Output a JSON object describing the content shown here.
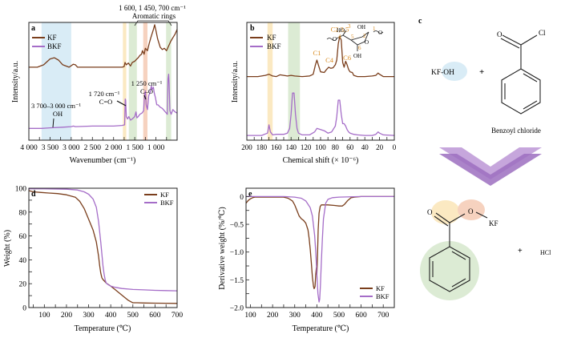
{
  "colors": {
    "kf": "#7a3e1c",
    "bkf": "#a56dc8",
    "band_blue": "#d9ecf6",
    "band_yellow": "#fbe9c2",
    "band_green": "#dcebd4",
    "band_orange": "#f6d2bf",
    "label_orange": "#d98a1f",
    "arrow_light": "#c6a6dc",
    "arrow_dark": "#9c6fc0"
  },
  "chart_data": [
    {
      "id": "a",
      "type": "line",
      "panel_label": "a",
      "xlabel": "Wavenumber (cm⁻¹)",
      "ylabel": "Intensity/a.u.",
      "xlim": [
        4000,
        500
      ],
      "x_reversed": true,
      "ylim": [
        0,
        1
      ],
      "xticks": [
        4000,
        3500,
        3000,
        2500,
        2000,
        1500,
        1000
      ],
      "xtick_labels": [
        "4 000",
        "3 500",
        "3 000",
        "2 500",
        "2 000",
        "1 500",
        "1 000"
      ],
      "legend": [
        "KF",
        "BKF"
      ],
      "legend_position": "top-left",
      "bands": [
        {
          "from": 3700,
          "to": 3000,
          "color": "band_blue"
        },
        {
          "from": 1780,
          "to": 1700,
          "color": "band_yellow"
        },
        {
          "from": 1640,
          "to": 1450,
          "color": "band_green"
        },
        {
          "from": 1300,
          "to": 1200,
          "color": "band_orange"
        },
        {
          "from": 760,
          "to": 640,
          "color": "band_green"
        }
      ],
      "annotations": [
        {
          "text": "1 600, 1 450, 700 cm⁻¹",
          "line2": "Aromatic rings"
        },
        {
          "text": "1 720 cm⁻¹",
          "line2": "C=O"
        },
        {
          "text": "1 250 cm⁻¹",
          "line2": "C–O"
        },
        {
          "text": "3 700–3 000 cm⁻¹",
          "line2": "OH"
        }
      ],
      "series": [
        {
          "name": "KF",
          "x": [
            4000,
            3800,
            3650,
            3500,
            3400,
            3300,
            3200,
            3050,
            2950,
            2900,
            2850,
            2700,
            2300,
            2000,
            1800,
            1750,
            1730,
            1700,
            1650,
            1600,
            1560,
            1500,
            1450,
            1420,
            1380,
            1340,
            1320,
            1280,
            1250,
            1200,
            1160,
            1120,
            1060,
            1030,
            1000,
            960,
            900,
            850,
            800,
            750,
            700,
            650,
            600,
            550,
            500
          ],
          "y": [
            0.62,
            0.62,
            0.64,
            0.69,
            0.7,
            0.68,
            0.64,
            0.62,
            0.645,
            0.64,
            0.62,
            0.62,
            0.62,
            0.62,
            0.62,
            0.625,
            0.66,
            0.64,
            0.655,
            0.63,
            0.66,
            0.67,
            0.69,
            0.7,
            0.72,
            0.73,
            0.76,
            0.73,
            0.78,
            0.76,
            0.82,
            0.87,
            0.94,
            0.98,
            0.93,
            0.86,
            0.79,
            0.77,
            0.78,
            0.76,
            0.8,
            0.84,
            0.87,
            0.9,
            0.94
          ]
        },
        {
          "name": "BKF",
          "x": [
            4000,
            3700,
            3500,
            3200,
            3000,
            2950,
            2900,
            2500,
            2000,
            1800,
            1740,
            1725,
            1715,
            1700,
            1670,
            1640,
            1600,
            1560,
            1500,
            1470,
            1450,
            1420,
            1380,
            1330,
            1290,
            1270,
            1250,
            1230,
            1200,
            1170,
            1140,
            1110,
            1090,
            1060,
            1040,
            1010,
            980,
            950,
            900,
            850,
            800,
            730,
            715,
            700,
            690,
            670,
            640,
            600,
            550,
            500
          ],
          "y": [
            0.1,
            0.1,
            0.105,
            0.11,
            0.115,
            0.12,
            0.115,
            0.12,
            0.12,
            0.125,
            0.13,
            0.35,
            0.34,
            0.2,
            0.18,
            0.2,
            0.17,
            0.18,
            0.2,
            0.24,
            0.19,
            0.2,
            0.22,
            0.23,
            0.25,
            0.38,
            0.42,
            0.3,
            0.26,
            0.38,
            0.4,
            0.46,
            0.43,
            0.45,
            0.4,
            0.36,
            0.3,
            0.3,
            0.28,
            0.27,
            0.25,
            0.22,
            0.52,
            0.56,
            0.48,
            0.25,
            0.22,
            0.26,
            0.24,
            0.23
          ]
        }
      ]
    },
    {
      "id": "b",
      "type": "line",
      "panel_label": "b",
      "xlabel": "Chemical shift (× 10⁻⁶)",
      "ylabel": "Intensity/a.u.",
      "xlim": [
        200,
        0
      ],
      "x_reversed": true,
      "ylim": [
        0,
        1
      ],
      "xticks": [
        200,
        180,
        160,
        140,
        120,
        100,
        80,
        60,
        40,
        20,
        0
      ],
      "xtick_labels": [
        "200",
        "180",
        "160",
        "140",
        "120",
        "100",
        "80",
        "60",
        "40",
        "20",
        "0"
      ],
      "legend": [
        "KF",
        "BKF"
      ],
      "legend_position": "top-left",
      "bands": [
        {
          "from": 172,
          "to": 165,
          "color": "band_yellow"
        },
        {
          "from": 144,
          "to": 128,
          "color": "band_green"
        }
      ],
      "peak_labels": [
        {
          "text": "C1",
          "x": 105
        },
        {
          "text": "C4",
          "x": 88
        },
        {
          "text": "C2,3,5",
          "x": 74
        },
        {
          "text": "C6",
          "x": 64
        }
      ],
      "inset_structure": {
        "labels": [
          "HO",
          "OH",
          "O",
          "OH",
          "1",
          "2",
          "3",
          "4",
          "5",
          "6"
        ]
      },
      "series": [
        {
          "name": "KF",
          "x": [
            200,
            185,
            175,
            170,
            165,
            160,
            155,
            145,
            140,
            135,
            125,
            115,
            110,
            107,
            105,
            103,
            100,
            95,
            92,
            89,
            86,
            83,
            80,
            78,
            76,
            74,
            72,
            70,
            68,
            66,
            64,
            62,
            60,
            57,
            55,
            50,
            40,
            30,
            25,
            22,
            20,
            15,
            10,
            0
          ],
          "y": [
            0.54,
            0.54,
            0.55,
            0.56,
            0.545,
            0.54,
            0.555,
            0.545,
            0.55,
            0.545,
            0.54,
            0.545,
            0.56,
            0.64,
            0.68,
            0.64,
            0.58,
            0.575,
            0.6,
            0.62,
            0.61,
            0.615,
            0.64,
            0.68,
            0.82,
            0.88,
            0.85,
            0.66,
            0.62,
            0.67,
            0.64,
            0.6,
            0.58,
            0.575,
            0.55,
            0.54,
            0.54,
            0.545,
            0.55,
            0.57,
            0.56,
            0.54,
            0.54,
            0.54
          ]
        },
        {
          "name": "BKF",
          "x": [
            200,
            180,
            172,
            170,
            168,
            165,
            160,
            150,
            145,
            142,
            140,
            138,
            136,
            134,
            132,
            130,
            125,
            115,
            108,
            105,
            100,
            95,
            90,
            85,
            80,
            78,
            76,
            74,
            72,
            70,
            68,
            66,
            64,
            62,
            60,
            55,
            50,
            40,
            30,
            25,
            22,
            20,
            15,
            0
          ],
          "y": [
            0.04,
            0.04,
            0.06,
            0.13,
            0.07,
            0.045,
            0.05,
            0.05,
            0.06,
            0.1,
            0.22,
            0.4,
            0.4,
            0.22,
            0.1,
            0.06,
            0.045,
            0.045,
            0.07,
            0.1,
            0.09,
            0.08,
            0.06,
            0.07,
            0.12,
            0.2,
            0.34,
            0.34,
            0.22,
            0.14,
            0.14,
            0.12,
            0.09,
            0.07,
            0.06,
            0.05,
            0.045,
            0.04,
            0.04,
            0.05,
            0.07,
            0.06,
            0.045,
            0.04
          ]
        }
      ]
    },
    {
      "id": "d",
      "type": "line",
      "panel_label": "d",
      "xlabel": "Temperature (℃)",
      "ylabel": "Weight (%)",
      "xlim": [
        30,
        700
      ],
      "ylim": [
        0,
        100
      ],
      "xticks": [
        100,
        200,
        300,
        400,
        500,
        600,
        700
      ],
      "yticks": [
        0,
        20,
        40,
        60,
        80,
        100
      ],
      "legend": [
        "KF",
        "BKF"
      ],
      "legend_position": "top-right",
      "series": [
        {
          "name": "KF",
          "x": [
            30,
            50,
            80,
            120,
            160,
            200,
            240,
            260,
            280,
            300,
            320,
            335,
            345,
            350,
            355,
            360,
            365,
            370,
            380,
            400,
            420,
            440,
            460,
            480,
            495,
            500,
            520,
            550,
            600,
            650,
            700
          ],
          "y": [
            98,
            97,
            96.5,
            96,
            95.5,
            94.5,
            92.5,
            89,
            83,
            74,
            65,
            55,
            43,
            35,
            29,
            25,
            23.5,
            22.5,
            20.5,
            18,
            15,
            12,
            9,
            6,
            4.5,
            4,
            4,
            3.8,
            3.7,
            3.6,
            3.5
          ]
        },
        {
          "name": "BKF",
          "x": [
            30,
            100,
            200,
            250,
            280,
            300,
            320,
            335,
            345,
            355,
            360,
            365,
            370,
            375,
            380,
            390,
            400,
            420,
            450,
            500,
            550,
            600,
            650,
            700
          ],
          "y": [
            99.5,
            99.5,
            99.2,
            98.5,
            97,
            95,
            91,
            84,
            72,
            55,
            45,
            35,
            28,
            23,
            20.5,
            19,
            18,
            17,
            16,
            15.2,
            14.8,
            14.4,
            14.2,
            14
          ]
        }
      ]
    },
    {
      "id": "e",
      "type": "line",
      "panel_label": "e",
      "xlabel": "Temperature (℃)",
      "ylabel": "Derivative weight (%/℃)",
      "xlim": [
        80,
        750
      ],
      "ylim": [
        -2.0,
        0.15
      ],
      "xticks": [
        100,
        200,
        300,
        400,
        500,
        600,
        700
      ],
      "yticks": [
        0,
        -0.5,
        -1.0,
        -1.5,
        -2.0
      ],
      "ytick_labels": [
        "0",
        "−0.5",
        "−1.0",
        "−1.5",
        "−2.0"
      ],
      "legend": [
        "KF",
        "BKF"
      ],
      "legend_position": "bottom-right",
      "series": [
        {
          "name": "KF",
          "x": [
            80,
            90,
            100,
            110,
            120,
            150,
            200,
            250,
            270,
            290,
            300,
            310,
            320,
            330,
            340,
            350,
            360,
            365,
            370,
            375,
            380,
            385,
            388,
            392,
            395,
            398,
            400,
            403,
            406,
            410,
            415,
            420,
            430,
            450,
            480,
            500,
            515,
            525,
            540,
            555,
            570,
            600,
            700,
            750
          ],
          "y": [
            -0.12,
            -0.07,
            -0.04,
            -0.02,
            -0.01,
            -0.01,
            -0.01,
            -0.01,
            -0.03,
            -0.08,
            -0.15,
            -0.25,
            -0.35,
            -0.4,
            -0.43,
            -0.48,
            -0.6,
            -0.75,
            -0.95,
            -1.2,
            -1.45,
            -1.62,
            -1.66,
            -1.62,
            -1.4,
            -1.28,
            -1.4,
            -1.05,
            -0.6,
            -0.3,
            -0.18,
            -0.15,
            -0.15,
            -0.15,
            -0.16,
            -0.17,
            -0.17,
            -0.14,
            -0.07,
            -0.02,
            -0.01,
            0,
            0,
            0
          ]
        },
        {
          "name": "BKF",
          "x": [
            80,
            150,
            250,
            300,
            330,
            350,
            370,
            380,
            390,
            395,
            400,
            405,
            410,
            413,
            416,
            420,
            425,
            430,
            440,
            450,
            470,
            500,
            600,
            750
          ],
          "y": [
            0,
            0,
            0,
            -0.01,
            -0.03,
            -0.08,
            -0.2,
            -0.35,
            -0.7,
            -1.0,
            -1.4,
            -1.75,
            -1.9,
            -1.85,
            -1.6,
            -1.2,
            -0.75,
            -0.4,
            -0.12,
            -0.05,
            -0.02,
            -0.01,
            0,
            0
          ]
        }
      ]
    }
  ],
  "panel_c": {
    "label": "c",
    "reactant1": "KF-OH",
    "plus1": "+",
    "reactant2_name": "Benzoyl chloride",
    "reactant2_atoms": {
      "o": "O",
      "cl": "Cl"
    },
    "product_atoms": {
      "o1": "O",
      "o2": "O",
      "kf": "KF"
    },
    "plus2": "+",
    "byproduct": "HCl"
  }
}
